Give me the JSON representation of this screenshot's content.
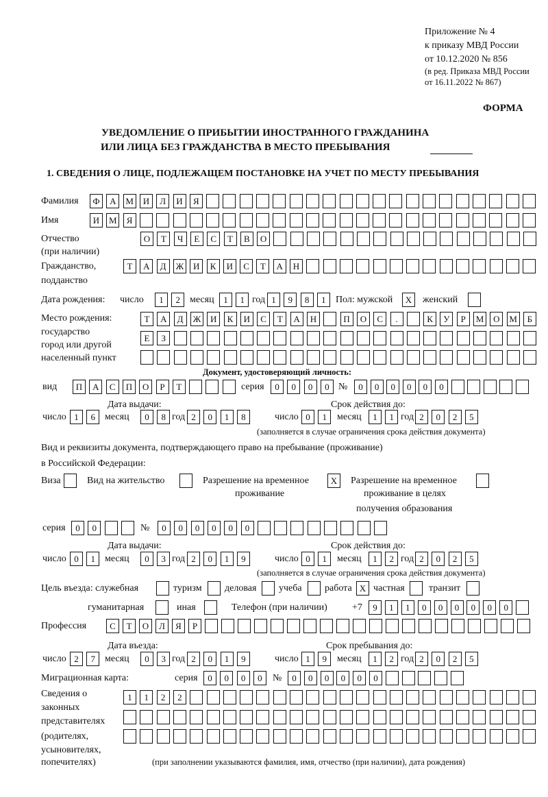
{
  "header": {
    "appendix": [
      "Приложение № 4",
      "к приказу МВД России",
      "от 10.12.2020 № 856"
    ],
    "amendment": [
      "(в ред. Приказа МВД России",
      "от 16.11.2022 № 867)"
    ],
    "form_label": "ФОРМА",
    "title_line1": "УВЕДОМЛЕНИЕ О ПРИБЫТИИ ИНОСТРАННОГО ГРАЖДАНИНА",
    "title_line2": "ИЛИ ЛИЦА БЕЗ ГРАЖДАНСТВА В МЕСТО ПРЕБЫВАНИЯ",
    "section1": "1. СВЕДЕНИЯ О ЛИЦЕ, ПОДЛЕЖАЩЕМ ПОСТАНОВКЕ НА УЧЕТ ПО МЕСТУ ПРЕБЫВАНИЯ"
  },
  "labels": {
    "surname": "Фамилия",
    "name": "Имя",
    "patronymic": "Отчество",
    "patronymic_note": "(при наличии)",
    "citizenship": "Гражданство,",
    "citizenship2": "подданство",
    "birth_date": "Дата рождения:",
    "day": "число",
    "month": "месяц",
    "year": "год",
    "sex": "Пол: мужской",
    "female": "женский",
    "birth_place": "Место рождения:",
    "bp2": "государство",
    "bp3": "город или другой",
    "bp4": "населенный пункт",
    "id_doc": "Документ, удостоверяющий личность:",
    "kind": "вид",
    "series": "серия",
    "number": "№",
    "issue_date": "Дата выдачи:",
    "valid_until": "Срок действия до:",
    "validity_note": "(заполняется в случае ограничения срока действия документа)",
    "stay_doc": "Вид и реквизиты документа, подтверждающего право на пребывание (проживание)",
    "stay_doc2": "в Российской Федерации:",
    "visa": "Виза",
    "residence": "Вид на жительство",
    "trp": "Разрешение на временное",
    "trp2": "проживание",
    "trp_edu": "Разрешение на временное",
    "trp_edu2": "проживание в целях",
    "trp_edu3": "получения образования",
    "purpose": "Цель въезда: служебная",
    "tourism": "туризм",
    "business": "деловая",
    "study": "учеба",
    "work": "работа",
    "private": "частная",
    "transit": "транзит",
    "humanitarian": "гуманитарная",
    "other": "иная",
    "phone": "Телефон (при наличии)",
    "phone_prefix": "+7",
    "profession": "Профессия",
    "entry_date": "Дата въезда:",
    "stay_until": "Срок пребывания до:",
    "migration_card": "Миграционная карта:",
    "reps1": "Сведения о",
    "reps2": "законных",
    "reps3": "представителях",
    "reps4": "(родителях,",
    "reps5": "усыновителях,",
    "reps6": "попечителях)",
    "reps_note": "(при заполнении указываются фамилия, имя, отчество (при наличии), дата рождения)"
  },
  "person": {
    "surname": "ФАМИЛИЯ",
    "name": "ИМЯ",
    "patronymic": "ОТЧЕСТВО",
    "citizenship": "ТАДЖИКИСТАН",
    "birth_day": "12",
    "birth_month": "11",
    "birth_year": "1981",
    "sex_male": "X",
    "sex_female": "",
    "birth_place": [
      "ТАДЖИКИСТАН ПОС. КУРМОМБ",
      "ЕЗ",
      ""
    ]
  },
  "id_document": {
    "kind": "ПАСПОРТ",
    "series": "0000",
    "number": "000000",
    "issue_day": "16",
    "issue_month": "08",
    "issue_year": "2018",
    "valid_day": "01",
    "valid_month": "11",
    "valid_year": "2025"
  },
  "stay_document": {
    "visa": "",
    "residence_permit": "",
    "temporary_residence": "X",
    "temporary_residence_education": "",
    "series": "00",
    "number": "000000",
    "issue_day": "01",
    "issue_month": "03",
    "issue_year": "2019",
    "valid_day": "01",
    "valid_month": "12",
    "valid_year": "2025"
  },
  "purpose": {
    "official": "",
    "tourism": "",
    "business": "",
    "study": "",
    "work": "X",
    "private": "",
    "transit": "",
    "humanitarian": "",
    "other": ""
  },
  "phone": "911000000",
  "profession": "СТОЛЯР",
  "entry": {
    "day": "27",
    "month": "03",
    "year": "2019",
    "stay_day": "19",
    "stay_month": "12",
    "stay_year": "2025"
  },
  "migration_card": {
    "series": "0000",
    "number": "000000"
  },
  "representatives": [
    "1122",
    "",
    ""
  ]
}
